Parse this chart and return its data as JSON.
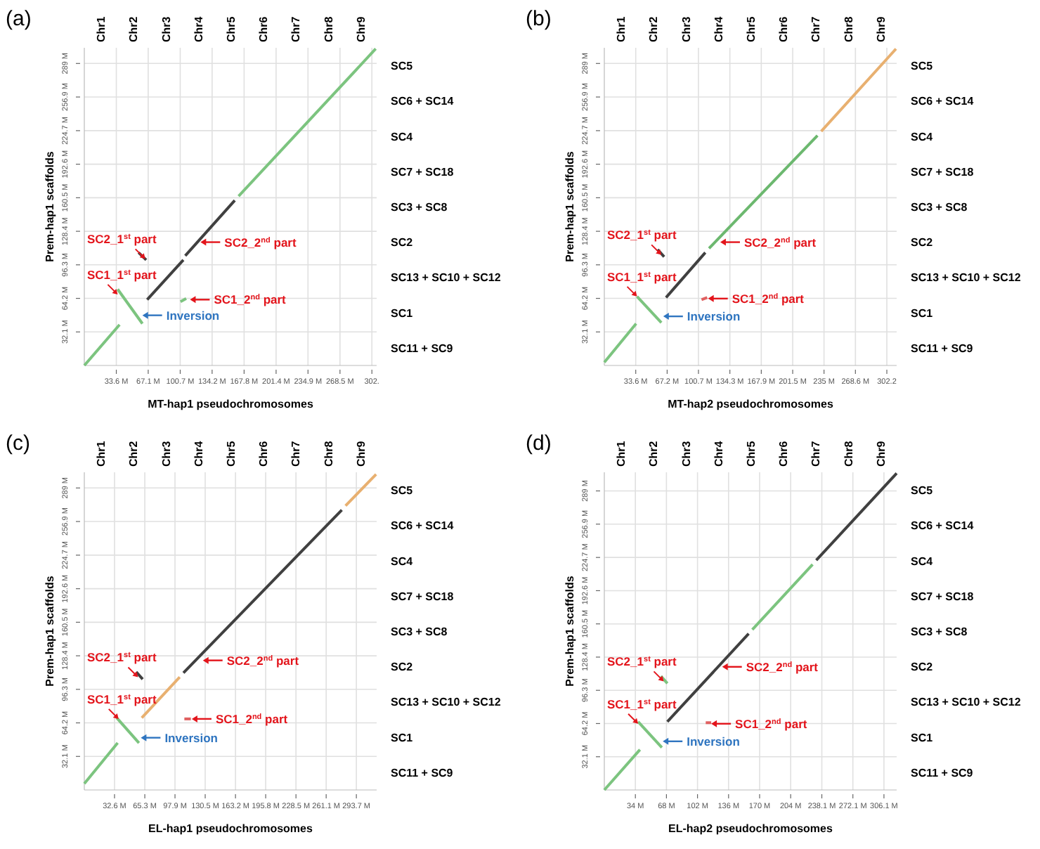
{
  "chart_data": [
    {
      "type": "line",
      "title": "(a)",
      "xlabel": "MT-hap1 pseudochromosomes",
      "ylabel": "Prem-hap1 scaffolds",
      "grid": true,
      "xlim": [
        0,
        307
      ],
      "ylim": [
        0,
        304
      ],
      "xticks": [
        {
          "value": 33.6,
          "label": "33.6 M"
        },
        {
          "value": 67.1,
          "label": "67.1 M"
        },
        {
          "value": 100.7,
          "label": "100.7 M"
        },
        {
          "value": 134.2,
          "label": "134.2 M"
        },
        {
          "value": 167.8,
          "label": "167.8 M"
        },
        {
          "value": 201.4,
          "label": "201.4 M"
        },
        {
          "value": 234.9,
          "label": "234.9 M"
        },
        {
          "value": 268.5,
          "label": "268.5 M"
        },
        {
          "value": 302,
          "label": "302."
        }
      ],
      "yticks": [
        {
          "value": 32.1,
          "label": "32.1 M"
        },
        {
          "value": 64.2,
          "label": "64.2 M"
        },
        {
          "value": 96.3,
          "label": "96.3 M"
        },
        {
          "value": 128.4,
          "label": "128.4 M"
        },
        {
          "value": 160.5,
          "label": "160.5 M"
        },
        {
          "value": 192.6,
          "label": "192.6 M"
        },
        {
          "value": 224.7,
          "label": "224.7 M"
        },
        {
          "value": 256.9,
          "label": "256.9 M"
        },
        {
          "value": 289,
          "label": "289 M"
        }
      ],
      "series": [
        {
          "color": "#7cc47f",
          "x": [
            0,
            37
          ],
          "values": [
            0,
            39
          ]
        },
        {
          "color": "#7cc47f",
          "x": [
            35,
            61
          ],
          "values": [
            73,
            40
          ]
        },
        {
          "color": "#404040",
          "x": [
            57,
            65
          ],
          "values": [
            108,
            101
          ]
        },
        {
          "color": "#7cc47f",
          "x": [
            101,
            107
          ],
          "values": [
            61,
            64
          ]
        },
        {
          "color": "#404040",
          "x": [
            66,
            104
          ],
          "values": [
            63,
            101
          ]
        },
        {
          "color": "#404040",
          "x": [
            106,
            158
          ],
          "values": [
            105,
            158
          ]
        },
        {
          "color": "#7cc47f",
          "x": [
            162,
            306
          ],
          "values": [
            162,
            303
          ]
        }
      ],
      "annotations": [
        {
          "text": "SC1_1$^{st}$ part",
          "x": 35,
          "y": 68
        },
        {
          "text": "SC2_1$^{st}$ part",
          "x": 64,
          "y": 102
        },
        {
          "text": "SC2_2$^{nd}$ part",
          "x": 122,
          "y": 118
        },
        {
          "text": "SC1_2$^{nd}$ part",
          "x": 111,
          "y": 63
        },
        {
          "text": "Inversion",
          "x": 61,
          "y": 48
        },
        "Chr1",
        "Chr2",
        "Chr3",
        "Chr4",
        "Chr5",
        "Chr6",
        "Chr7",
        "Chr8",
        "Chr9",
        "SC5",
        "SC6 + SC14",
        "SC4",
        "SC7 + SC18",
        "SC3 + SC8",
        "SC2",
        "SC13 + SC10 + SC12",
        "SC1",
        "SC11 + SC9"
      ]
    },
    {
      "type": "line",
      "title": "(b)",
      "xlabel": "MT-hap2 pseudochromosomes",
      "ylabel": "Prem-hap1 scaffolds",
      "grid": true,
      "xlim": [
        0,
        312.7
      ],
      "ylim": [
        0,
        304
      ],
      "xticks": [
        {
          "value": 33.6,
          "label": "33.6 M"
        },
        {
          "value": 67.2,
          "label": "67.2 M"
        },
        {
          "value": 100.7,
          "label": "100.7 M"
        },
        {
          "value": 134.3,
          "label": "134.3 M"
        },
        {
          "value": 167.9,
          "label": "167.9 M"
        },
        {
          "value": 201.5,
          "label": "201.5 M"
        },
        {
          "value": 235,
          "label": "235 M"
        },
        {
          "value": 268.6,
          "label": "268.6 M"
        },
        {
          "value": 302.2,
          "label": "302.2"
        }
      ],
      "yticks": [
        {
          "value": 32.1,
          "label": "32.1 M"
        },
        {
          "value": 64.2,
          "label": "64.2 M"
        },
        {
          "value": 96.3,
          "label": "96.3 M"
        },
        {
          "value": 128.4,
          "label": "128.4 M"
        },
        {
          "value": 160.5,
          "label": "160.5 M"
        },
        {
          "value": 192.6,
          "label": "192.6 M"
        },
        {
          "value": 224.7,
          "label": "224.7 M"
        },
        {
          "value": 256.9,
          "label": "256.9 M"
        },
        {
          "value": 289,
          "label": "289 M"
        }
      ],
      "series": [
        {
          "color": "#7cc47f",
          "x": [
            0,
            34
          ],
          "values": [
            3,
            40
          ]
        },
        {
          "color": "#7cc47f",
          "x": [
            35,
            61
          ],
          "values": [
            66,
            41
          ]
        },
        {
          "color": "#404040",
          "x": [
            57,
            64
          ],
          "values": [
            111,
            104
          ]
        },
        {
          "color": "#e06060",
          "x": [
            104,
            110
          ],
          "values": [
            63,
            65
          ]
        },
        {
          "color": "#404040",
          "x": [
            66,
            108
          ],
          "values": [
            65,
            108
          ]
        },
        {
          "color": "#6cb86f",
          "x": [
            112,
            228
          ],
          "values": [
            112,
            220
          ]
        },
        {
          "color": "#e8b070",
          "x": [
            232,
            312
          ],
          "values": [
            224,
            303
          ]
        }
      ],
      "annotations": [
        {
          "text": "SC1_1$^{st}$ part",
          "x": 35,
          "y": 66
        },
        {
          "text": "SC2_1$^{st}$ part",
          "x": 61,
          "y": 106
        },
        {
          "text": "SC2_2$^{nd}$ part",
          "x": 124,
          "y": 118
        },
        {
          "text": "SC1_2$^{nd}$ part",
          "x": 111,
          "y": 64
        },
        {
          "text": "Inversion",
          "x": 63,
          "y": 47
        },
        "Chr1",
        "Chr2",
        "Chr3",
        "Chr4",
        "Chr5",
        "Chr6",
        "Chr7",
        "Chr8",
        "Chr9",
        "SC5",
        "SC6 + SC14",
        "SC4",
        "SC7 + SC18",
        "SC3 + SC8",
        "SC2",
        "SC13 + SC10 + SC12",
        "SC1",
        "SC11 + SC9"
      ]
    },
    {
      "type": "line",
      "title": "(c)",
      "xlabel": "EL-hap1 pseudochromosomes",
      "ylabel": "Prem-hap1 scaffolds",
      "grid": true,
      "xlim": [
        0,
        315.6
      ],
      "ylim": [
        0,
        304
      ],
      "xticks": [
        {
          "value": 32.6,
          "label": "32.6 M"
        },
        {
          "value": 65.3,
          "label": "65.3 M"
        },
        {
          "value": 97.9,
          "label": "97.9 M"
        },
        {
          "value": 130.5,
          "label": "130.5 M"
        },
        {
          "value": 163.2,
          "label": "163.2 M"
        },
        {
          "value": 195.8,
          "label": "195.8 M"
        },
        {
          "value": 228.5,
          "label": "228.5 M"
        },
        {
          "value": 261.1,
          "label": "261.1 M"
        },
        {
          "value": 293.7,
          "label": "293.7 M"
        }
      ],
      "yticks": [
        {
          "value": 32.1,
          "label": "32.1 M"
        },
        {
          "value": 64.2,
          "label": "64.2 M"
        },
        {
          "value": 96.3,
          "label": "96.3 M"
        },
        {
          "value": 128.4,
          "label": "128.4 M"
        },
        {
          "value": 160.5,
          "label": "160.5 M"
        },
        {
          "value": 192.6,
          "label": "192.6 M"
        },
        {
          "value": 224.7,
          "label": "224.7 M"
        },
        {
          "value": 256.9,
          "label": "256.9 M"
        },
        {
          "value": 289,
          "label": "289 M"
        }
      ],
      "series": [
        {
          "color": "#7cc47f",
          "x": [
            0,
            36
          ],
          "values": [
            6,
            45
          ]
        },
        {
          "color": "#7cc47f",
          "x": [
            35,
            59
          ],
          "values": [
            69,
            45
          ]
        },
        {
          "color": "#404040",
          "x": [
            56,
            63
          ],
          "values": [
            113,
            106
          ]
        },
        {
          "color": "#e06060",
          "x": [
            108,
            115
          ],
          "values": [
            68,
            68
          ]
        },
        {
          "color": "#e8b070",
          "x": [
            62,
            103
          ],
          "values": [
            69,
            108
          ]
        },
        {
          "color": "#404040",
          "x": [
            107,
            278
          ],
          "values": [
            112,
            268
          ]
        },
        {
          "color": "#e8b070",
          "x": [
            282,
            315
          ],
          "values": [
            272,
            302
          ]
        }
      ],
      "annotations": [
        {
          "text": "SC1_1$^{st}$ part",
          "x": 37,
          "y": 68
        },
        {
          "text": "SC2_1$^{st}$ part",
          "x": 58,
          "y": 108
        },
        {
          "text": "SC2_2$^{nd}$ part",
          "x": 128,
          "y": 124
        },
        {
          "text": "SC1_2$^{nd}$ part",
          "x": 116,
          "y": 68
        },
        {
          "text": "Inversion",
          "x": 61,
          "y": 50
        },
        "Chr1",
        "Chr2",
        "Chr3",
        "Chr4",
        "Chr5",
        "Chr6",
        "Chr7",
        "Chr8",
        "Chr9",
        "SC5",
        "SC6 + SC14",
        "SC4",
        "SC7 + SC18",
        "SC3 + SC8",
        "SC2",
        "SC13 + SC10 + SC12",
        "SC1",
        "SC11 + SC9"
      ]
    },
    {
      "type": "line",
      "title": "(d)",
      "xlabel": "EL-hap2 pseudochromosomes",
      "ylabel": "Prem-hap1 scaffolds",
      "grid": true,
      "xlim": [
        0,
        320
      ],
      "ylim": [
        0,
        307
      ],
      "xticks": [
        {
          "value": 34,
          "label": "34 M"
        },
        {
          "value": 68,
          "label": "68 M"
        },
        {
          "value": 102,
          "label": "102 M"
        },
        {
          "value": 136,
          "label": "136 M"
        },
        {
          "value": 170,
          "label": "170 M"
        },
        {
          "value": 204,
          "label": "204 M"
        },
        {
          "value": 238.1,
          "label": "238.1 M"
        },
        {
          "value": 272.1,
          "label": "272.1 M"
        },
        {
          "value": 306.1,
          "label": "306.1 M"
        }
      ],
      "yticks": [
        {
          "value": 32.1,
          "label": "32.1 M"
        },
        {
          "value": 64.2,
          "label": "64.2 M"
        },
        {
          "value": 96.3,
          "label": "96.3 M"
        },
        {
          "value": 128.4,
          "label": "128.4 M"
        },
        {
          "value": 160.5,
          "label": "160.5 M"
        },
        {
          "value": 192.6,
          "label": "192.6 M"
        },
        {
          "value": 224.7,
          "label": "224.7 M"
        },
        {
          "value": 256.9,
          "label": "256.9 M"
        },
        {
          "value": 289,
          "label": "289 M"
        }
      ],
      "series": [
        {
          "color": "#7cc47f",
          "x": [
            0,
            39
          ],
          "values": [
            0,
            39
          ]
        },
        {
          "color": "#7cc47f",
          "x": [
            37,
            63
          ],
          "values": [
            66,
            41
          ]
        },
        {
          "color": "#7cc47f",
          "x": [
            62,
            69
          ],
          "values": [
            110,
            103
          ]
        },
        {
          "color": "#e06060",
          "x": [
            111,
            117
          ],
          "values": [
            65,
            65
          ]
        },
        {
          "color": "#404040",
          "x": [
            69,
            158
          ],
          "values": [
            66,
            151
          ]
        },
        {
          "color": "#7cc47f",
          "x": [
            162,
            228
          ],
          "values": [
            155,
            218
          ]
        },
        {
          "color": "#404040",
          "x": [
            232,
            320
          ],
          "values": [
            222,
            306
          ]
        }
      ],
      "annotations": [
        {
          "text": "SC1_1$^{st}$ part",
          "x": 37,
          "y": 64
        },
        {
          "text": "SC2_1$^{st}$ part",
          "x": 65,
          "y": 105
        },
        {
          "text": "SC2_2$^{nd}$ part",
          "x": 129,
          "y": 119
        },
        {
          "text": "SC1_2$^{nd}$ part",
          "x": 117,
          "y": 64
        },
        {
          "text": "Inversion",
          "x": 64,
          "y": 47
        },
        "Chr1",
        "Chr2",
        "Chr3",
        "Chr4",
        "Chr5",
        "Chr6",
        "Chr7",
        "Chr8",
        "Chr9",
        "SC5",
        "SC6 + SC14",
        "SC4",
        "SC7 + SC18",
        "SC3 + SC8",
        "SC2",
        "SC13 + SC10 + SC12",
        "SC1",
        "SC11 + SC9"
      ]
    }
  ]
}
